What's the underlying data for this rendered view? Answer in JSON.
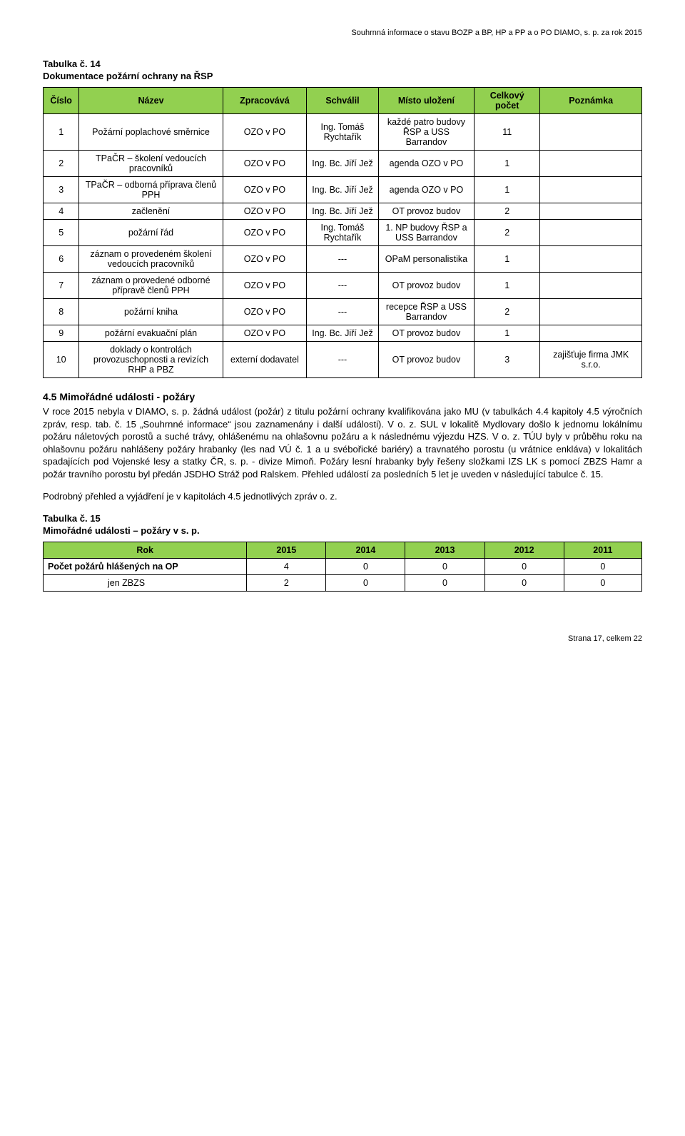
{
  "header": "Souhrnná informace o stavu BOZP a BP, HP a PP a o PO DIAMO, s. p. za rok 2015",
  "table14": {
    "title": "Tabulka č. 14",
    "subtitle": "Dokumentace požární ochrany na ŘSP",
    "columns": [
      "Číslo",
      "Název",
      "Zpracovává",
      "Schválil",
      "Místo uložení",
      "Celkový počet",
      "Poznámka"
    ],
    "head_bg": "#92d050",
    "rows": [
      {
        "n": "1",
        "nazev": "Požární poplachové směrnice",
        "zprac": "OZO v PO",
        "schv": "Ing. Tomáš Rychtařík",
        "misto": "každé patro budovy ŘSP a USS Barrandov",
        "pocet": "11",
        "pozn": ""
      },
      {
        "n": "2",
        "nazev": "TPaČR – školení vedoucích pracovníků",
        "zprac": "OZO v PO",
        "schv": "Ing. Bc. Jiří Jež",
        "misto": "agenda OZO v PO",
        "pocet": "1",
        "pozn": ""
      },
      {
        "n": "3",
        "nazev": "TPaČR – odborná příprava členů PPH",
        "zprac": "OZO v PO",
        "schv": "Ing. Bc. Jiří Jež",
        "misto": "agenda OZO v PO",
        "pocet": "1",
        "pozn": ""
      },
      {
        "n": "4",
        "nazev": "začlenění",
        "zprac": "OZO v PO",
        "schv": "Ing. Bc. Jiří Jež",
        "misto": "OT provoz budov",
        "pocet": "2",
        "pozn": ""
      },
      {
        "n": "5",
        "nazev": "požární řád",
        "zprac": "OZO v PO",
        "schv": "Ing. Tomáš Rychtařík",
        "misto": "1. NP budovy ŘSP a USS Barrandov",
        "pocet": "2",
        "pozn": ""
      },
      {
        "n": "6",
        "nazev": "záznam o provedeném školení vedoucích pracovníků",
        "zprac": "OZO v PO",
        "schv": "---",
        "misto": "OPaM personalistika",
        "pocet": "1",
        "pozn": ""
      },
      {
        "n": "7",
        "nazev": "záznam o provedené odborné přípravě členů PPH",
        "zprac": "OZO v PO",
        "schv": "---",
        "misto": "OT provoz budov",
        "pocet": "1",
        "pozn": ""
      },
      {
        "n": "8",
        "nazev": "požární kniha",
        "zprac": "OZO v PO",
        "schv": "---",
        "misto": "recepce ŘSP a USS Barrandov",
        "pocet": "2",
        "pozn": ""
      },
      {
        "n": "9",
        "nazev": "požární evakuační plán",
        "zprac": "OZO v PO",
        "schv": "Ing. Bc. Jiří Jež",
        "misto": "OT provoz budov",
        "pocet": "1",
        "pozn": ""
      },
      {
        "n": "10",
        "nazev": "doklady o kontrolách provozuschopnosti a revizích RHP a PBZ",
        "zprac": "externí dodavatel",
        "schv": "---",
        "misto": "OT provoz budov",
        "pocet": "3",
        "pozn": "zajišťuje firma JMK s.r.o."
      }
    ]
  },
  "section45": {
    "heading": "4.5   Mimořádné události - požáry",
    "paragraph": "V roce 2015 nebyla v DIAMO, s. p. žádná událost (požár) z titulu požární ochrany kvalifikována jako MU (v tabulkách 4.4 kapitoly 4.5 výročních zpráv, resp. tab. č. 15 „Souhrnné informace“ jsou zaznamenány i další události). V o. z. SUL v lokalitě Mydlovary došlo k jednomu lokálnímu požáru náletových porostů a suché trávy, ohlášenému na ohlašovnu požáru a k následnému výjezdu HZS. V o. z. TÚU byly v průběhu roku na ohlašovnu požáru nahlášeny požáry hrabanky (les nad VÚ č. 1 a u svébořické bariéry) a travnatého porostu (u vrátnice enkláva) v lokalitách spadajících pod Vojenské lesy a statky ČR, s. p. - divize Mimoň. Požáry lesní hrabanky byly řešeny složkami IZS LK s pomocí ZBZS Hamr a požár travního porostu byl předán JSDHO Stráž pod Ralskem. Přehled událostí za posledních 5 let je uveden v následující tabulce č. 15.",
    "paragraph2": "Podrobný přehled a vyjádření je v kapitolách 4.5 jednotlivých zpráv o. z."
  },
  "table15": {
    "title": "Tabulka č. 15",
    "subtitle": "Mimořádné události – požáry v s. p.",
    "columns": [
      "Rok",
      "2015",
      "2014",
      "2013",
      "2012",
      "2011"
    ],
    "head_bg": "#92d050",
    "rows": [
      {
        "label": "Počet požárů hlášených na OP",
        "vals": [
          "4",
          "0",
          "0",
          "0",
          "0"
        ]
      },
      {
        "label": "jen ZBZS",
        "vals": [
          "2",
          "0",
          "0",
          "0",
          "0"
        ],
        "indent": true
      }
    ]
  },
  "footer": "Strana 17, celkem 22"
}
